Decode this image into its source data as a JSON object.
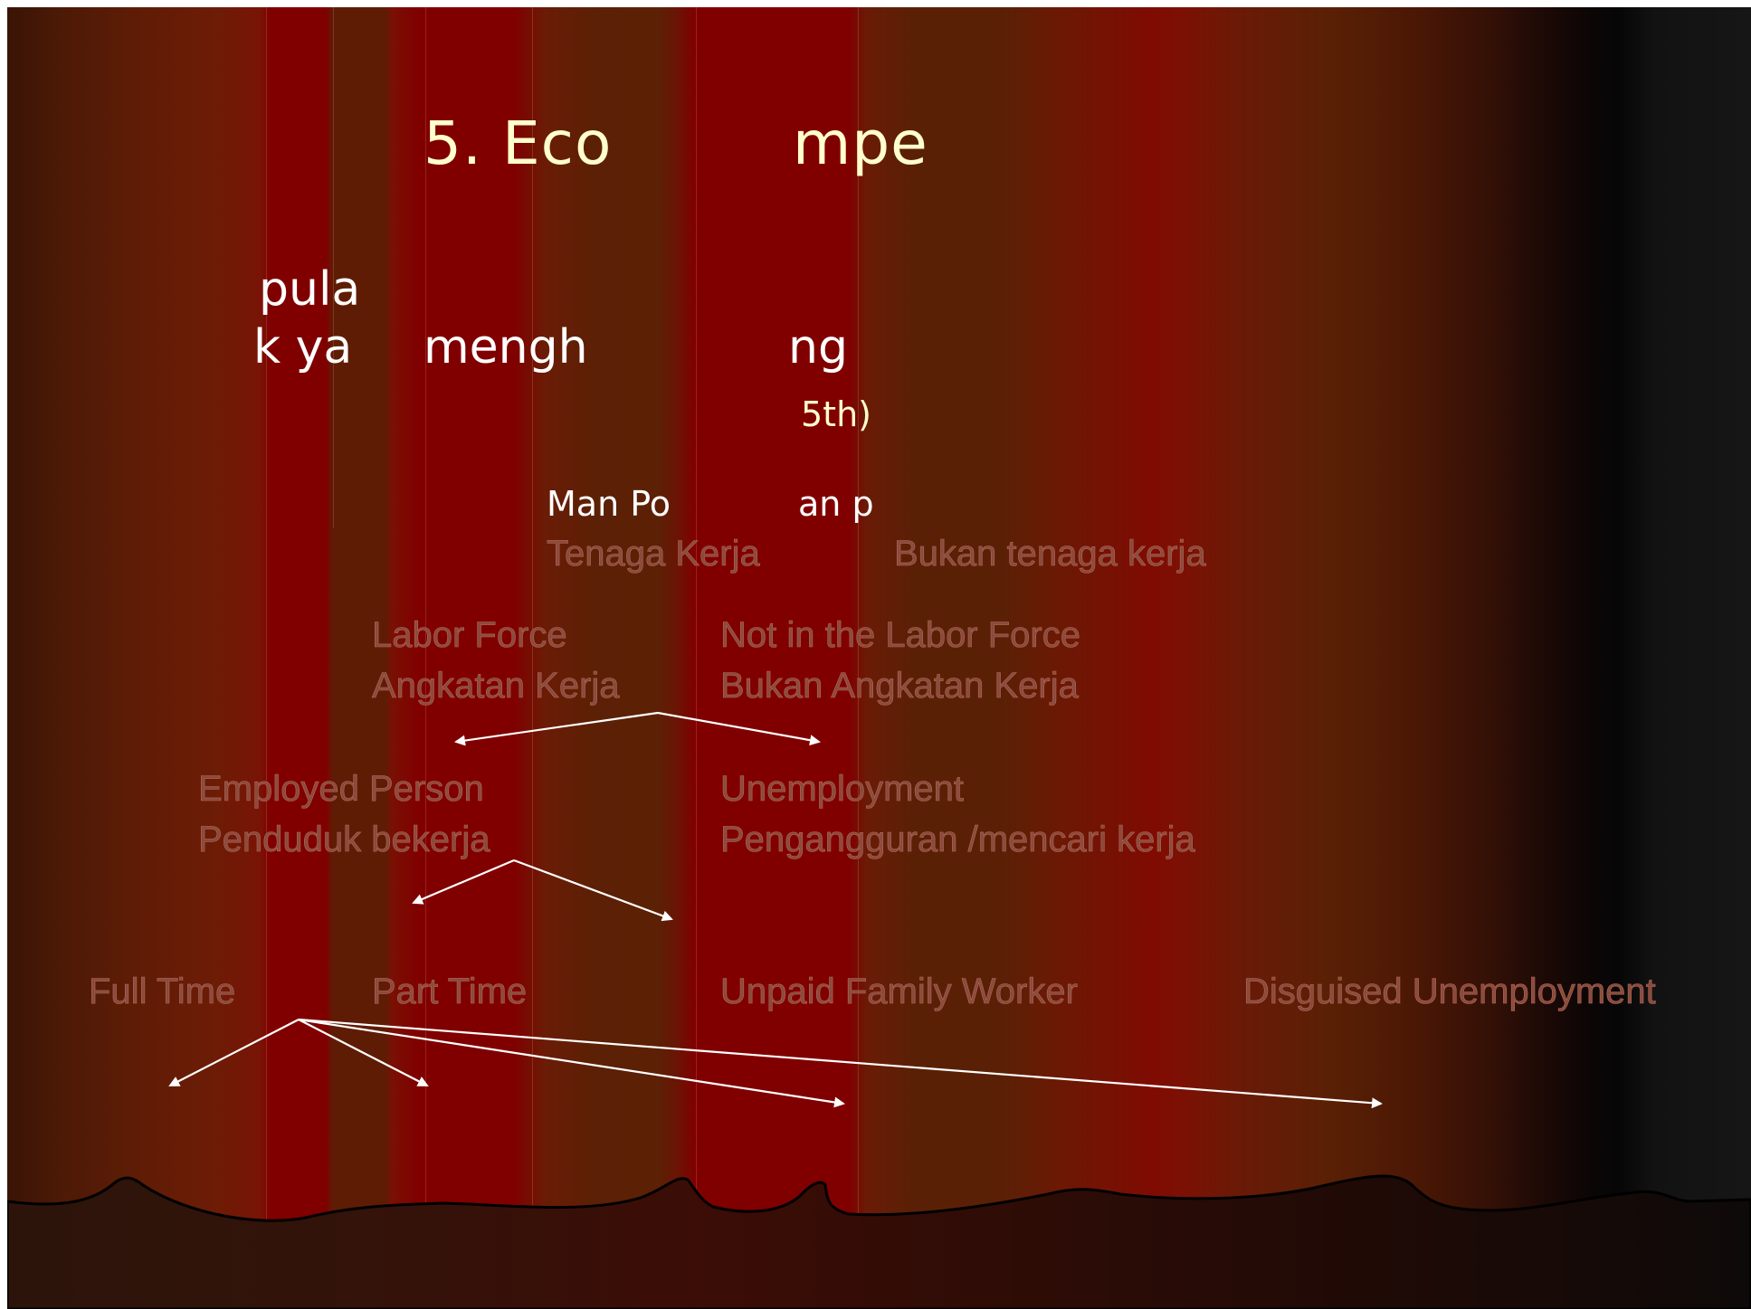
{
  "slide": {
    "title_fragment": "5. Eco",
    "title_fragment_2": "mpe",
    "line1_fragment": "pula",
    "line2_fragment_a": "k ya",
    "line2_fragment_b": "mengh",
    "line2_fragment_c": "ng",
    "line3_fragment": "5th)",
    "manpower_fragment_a": "Man Po",
    "manpower_fragment_b": "an p"
  },
  "diagram": {
    "root_left": "Tenaga Kerja",
    "root_right": "Bukan tenaga kerja",
    "labor_force": {
      "en": "Labor Force",
      "id": "Angkatan Kerja"
    },
    "not_labor_force": {
      "en": "Not in the Labor Force",
      "id": "Bukan Angkatan Kerja"
    },
    "employed": {
      "en": "Employed Person",
      "id": "Penduduk bekerja"
    },
    "unemployment": {
      "en": "Unemployment",
      "id": "Pengangguran /mencari kerja"
    },
    "leaves": [
      "Full Time",
      "Part Time",
      "Unpaid Family Worker",
      "Disguised Unemployment"
    ]
  },
  "colors": {
    "curtain_red": "#800000",
    "curtain_brown": "#5e1c05",
    "title_text": "#ffffcc",
    "node_text": "#8a4a3c",
    "arrow": "#ffffff"
  }
}
